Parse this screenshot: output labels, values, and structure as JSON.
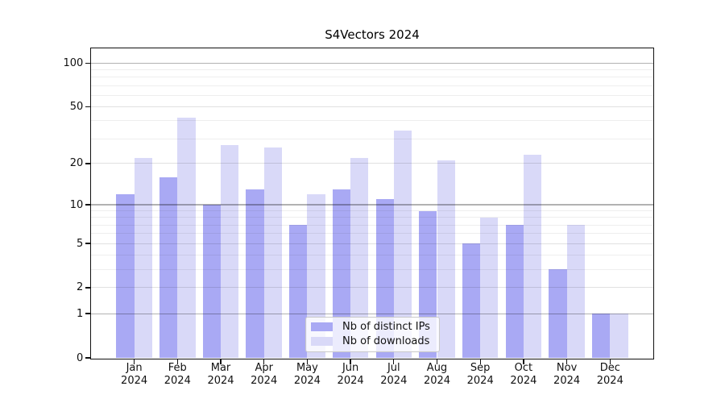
{
  "chart_data": {
    "type": "bar",
    "title": "S4Vectors 2024",
    "categories": [
      "Jan",
      "Feb",
      "Mar",
      "Apr",
      "May",
      "Jun",
      "Jul",
      "Aug",
      "Sep",
      "Oct",
      "Nov",
      "Dec"
    ],
    "x_tick_line2": "2024",
    "series": [
      {
        "name": "Nb of distinct IPs",
        "color": "#a9a9f4",
        "values": [
          12,
          16,
          10,
          13,
          7,
          13,
          11,
          9,
          5,
          7,
          3,
          1
        ]
      },
      {
        "name": "Nb of downloads",
        "color": "#d9d9f8",
        "values": [
          22,
          42,
          27,
          26,
          12,
          22,
          34,
          21,
          8,
          23,
          7,
          1
        ]
      }
    ],
    "yscale": "log1p",
    "ylim": [
      0,
      125
    ],
    "yticks": [
      0,
      1,
      2,
      5,
      10,
      20,
      50,
      100
    ],
    "grid": {
      "major": [
        1,
        10,
        100
      ],
      "mid": [
        2,
        5,
        20,
        50
      ],
      "minor": [
        3,
        4,
        6,
        7,
        8,
        9,
        30,
        40,
        60,
        70,
        80,
        90
      ]
    },
    "legend_position": "inside-bottom-center",
    "xlabel": "",
    "ylabel": ""
  },
  "colors": {
    "bar_distinct_ips": "#a9a9f4",
    "bar_downloads": "#d9d9f8",
    "grid_major": "#b2b2b2",
    "grid_mid": "#e1e1e1",
    "grid_minor": "#eeeeee",
    "axis": "#111111",
    "text": "#000000",
    "legend_border": "#c9c9c9"
  }
}
